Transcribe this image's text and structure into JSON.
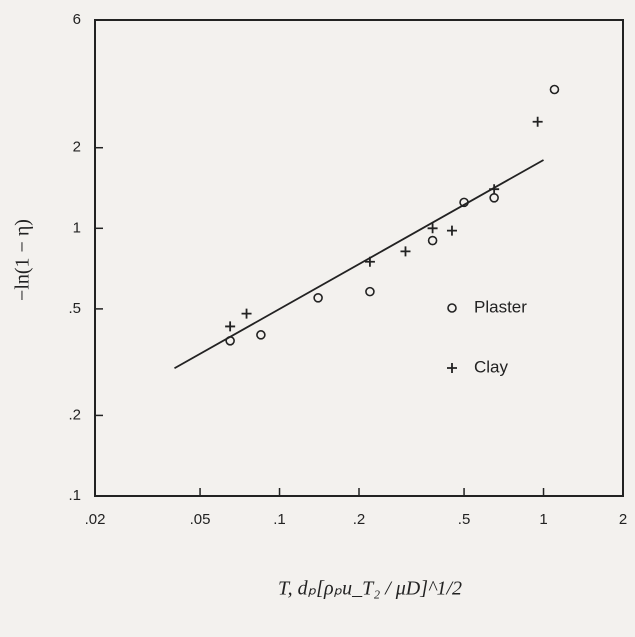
{
  "chart_data": {
    "type": "scatter",
    "y_label": "−ln(1 − η)",
    "x_label": "T, dₚ[ρₚu_T₂ / μD]^1/2",
    "log_x": true,
    "log_y": true,
    "xlim": [
      0.02,
      2
    ],
    "ylim": [
      0.1,
      6
    ],
    "xticks": [
      {
        "value": 0.02,
        "label": ".02"
      },
      {
        "value": 0.05,
        "label": ".05"
      },
      {
        "value": 0.1,
        "label": ".1"
      },
      {
        "value": 0.2,
        "label": ".2"
      },
      {
        "value": 0.5,
        "label": ".5"
      },
      1,
      2
    ],
    "yticks": [
      {
        "value": 0.1,
        "label": ".1"
      },
      {
        "value": 0.2,
        "label": ".2"
      },
      {
        "value": 0.5,
        "label": ".5"
      },
      1,
      2,
      6
    ],
    "series": [
      {
        "name": "Plaster",
        "marker": "circle",
        "color": "#222222",
        "x": [
          0.065,
          0.085,
          0.14,
          0.22,
          0.38,
          0.5,
          0.65,
          1.1
        ],
        "values": [
          0.38,
          0.4,
          0.55,
          0.58,
          0.9,
          1.25,
          1.3,
          3.3
        ]
      },
      {
        "name": "Clay",
        "marker": "plus",
        "color": "#222222",
        "x": [
          0.065,
          0.075,
          0.22,
          0.3,
          0.38,
          0.45,
          0.65,
          0.95
        ],
        "values": [
          0.43,
          0.48,
          0.75,
          0.82,
          1.0,
          0.98,
          1.4,
          2.5
        ]
      }
    ],
    "fit_line": {
      "x": [
        0.04,
        1.0
      ],
      "values": [
        0.3,
        1.8
      ],
      "color": "#222222"
    }
  }
}
